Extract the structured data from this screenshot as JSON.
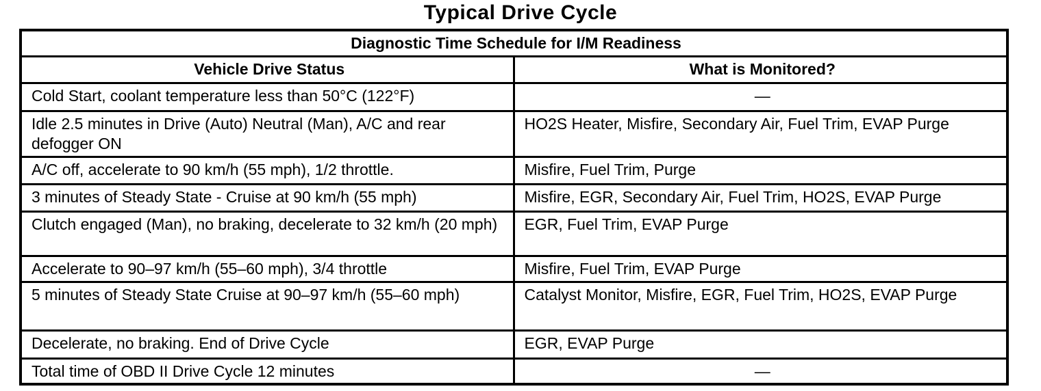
{
  "title": "Typical Drive Cycle",
  "table": {
    "banner": "Diagnostic Time Schedule for I/M Readiness",
    "columns": {
      "status": "Vehicle Drive Status",
      "monitored": "What is Monitored?"
    },
    "rows": [
      {
        "status": "Cold Start, coolant temperature less than 50°C (122°F)",
        "monitored": "—"
      },
      {
        "status": "Idle 2.5 minutes in Drive (Auto) Neutral (Man), A/C and rear defogger ON",
        "monitored": "HO2S Heater, Misfire, Secondary Air, Fuel Trim, EVAP Purge"
      },
      {
        "status": "A/C off, accelerate to 90 km/h (55 mph), 1/2 throttle.",
        "monitored": "Misfire, Fuel Trim, Purge"
      },
      {
        "status": "3 minutes of Steady State - Cruise at 90 km/h (55 mph)",
        "monitored": "Misfire, EGR, Secondary Air, Fuel Trim, HO2S, EVAP Purge"
      },
      {
        "status": "Clutch engaged (Man), no braking, decelerate to 32 km/h (20 mph)",
        "monitored": "EGR, Fuel Trim, EVAP Purge"
      },
      {
        "status": "Accelerate to 90–97 km/h (55–60 mph), 3/4 throttle",
        "monitored": "Misfire, Fuel Trim, EVAP Purge"
      },
      {
        "status": "5 minutes of Steady State Cruise at 90–97 km/h (55–60 mph)",
        "monitored": "Catalyst Monitor, Misfire, EGR, Fuel Trim, HO2S, EVAP Purge"
      },
      {
        "status": "Decelerate, no braking. End of Drive Cycle",
        "monitored": "EGR, EVAP Purge"
      },
      {
        "status": "Total time of OBD II Drive Cycle 12 minutes",
        "monitored": "—"
      }
    ]
  }
}
